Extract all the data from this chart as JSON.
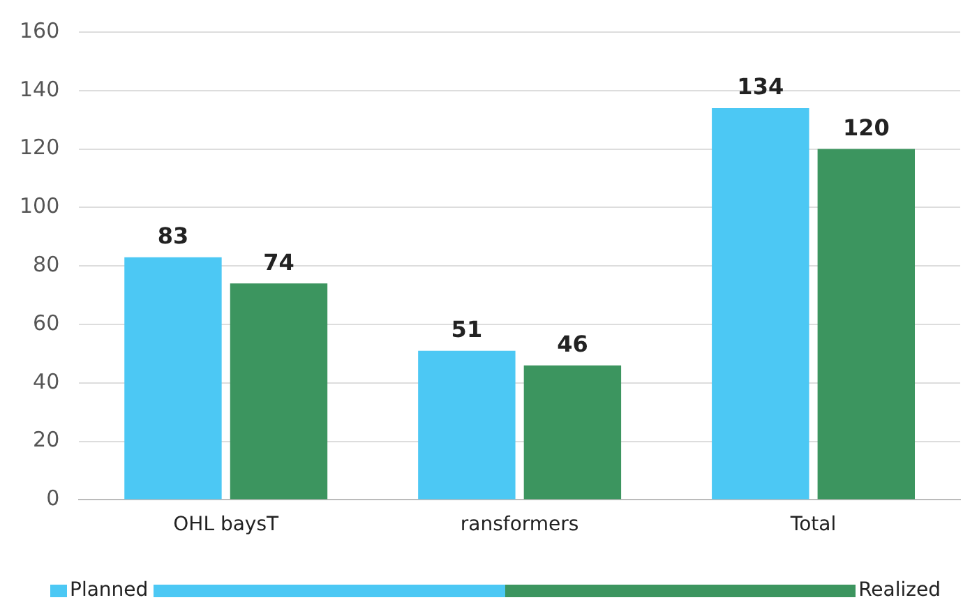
{
  "chart_data": {
    "type": "bar",
    "categories": [
      "OHL baysT",
      "ransformers",
      "Total"
    ],
    "series": [
      {
        "name": "Planned",
        "color": "#4cc8f4",
        "values": [
          83,
          51,
          134
        ]
      },
      {
        "name": "Realized",
        "color": "#3c955f",
        "values": [
          74,
          46,
          120
        ]
      }
    ],
    "ylim": [
      0,
      160
    ],
    "yticks": [
      0,
      20,
      40,
      60,
      80,
      100,
      120,
      140,
      160
    ],
    "grid": "y",
    "legend": "bottom",
    "data_labels": true
  }
}
